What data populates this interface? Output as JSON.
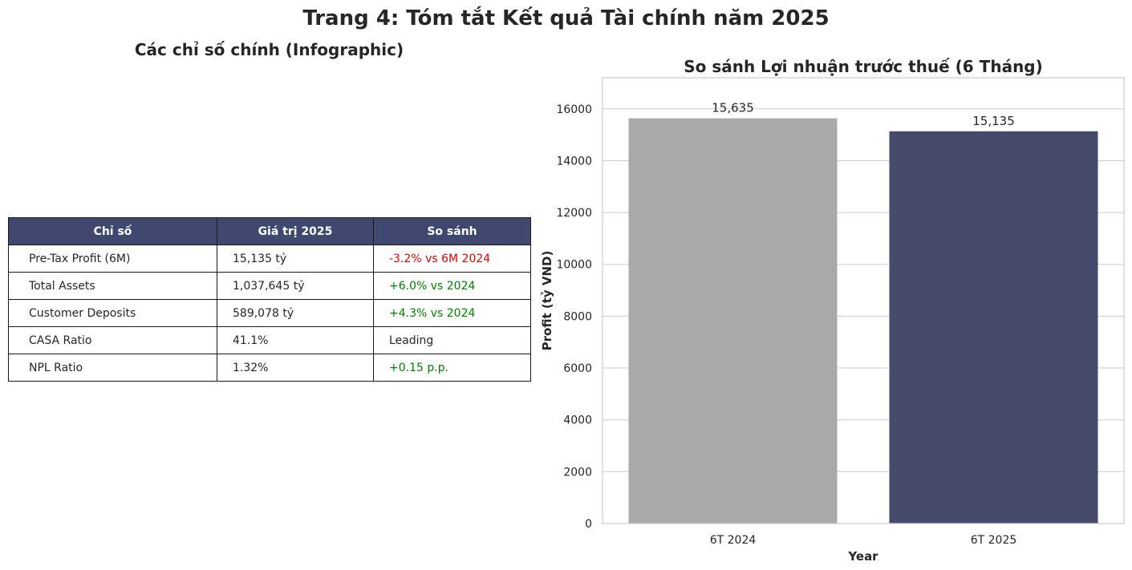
{
  "page": {
    "suptitle": "Trang 4: Tóm tắt Kết quả Tài chính năm 2025",
    "left_title": "Các chỉ số chính (Infographic)"
  },
  "table": {
    "headers": [
      "Chỉ số",
      "Giá trị 2025",
      "So sánh"
    ],
    "rows": [
      {
        "metric": "Pre-Tax Profit (6M)",
        "value": "15,135 tỷ",
        "comparison": "-3.2% vs 6M 2024",
        "comparison_color": "#e00000"
      },
      {
        "metric": "Total Assets",
        "value": "1,037,645 tỷ",
        "comparison": "+6.0% vs 2024",
        "comparison_color": "#008000"
      },
      {
        "metric": "Customer Deposits",
        "value": "589,078 tỷ",
        "comparison": "+4.3% vs 2024",
        "comparison_color": "#008000"
      },
      {
        "metric": "CASA Ratio",
        "value": "41.1%",
        "comparison": "Leading",
        "comparison_color": "#262626"
      },
      {
        "metric": "NPL Ratio",
        "value": "1.32%",
        "comparison": "+0.15 p.p.",
        "comparison_color": "#008000"
      }
    ],
    "header_color": "#414870"
  },
  "chart_data": {
    "type": "bar",
    "title": "So sánh Lợi nhuận trước thuế (6 Tháng)",
    "categories": [
      "6T 2024",
      "6T 2025"
    ],
    "values": [
      15635,
      15135
    ],
    "value_labels": [
      "15,635",
      "15,135"
    ],
    "colors": [
      "#a9a9a9",
      "#464a6b"
    ],
    "xlabel": "Year",
    "ylabel": "Profit (tỷ VND)",
    "ylim": [
      0,
      17200
    ],
    "yticks": [
      0,
      2000,
      4000,
      6000,
      8000,
      10000,
      12000,
      14000,
      16000
    ],
    "grid": true
  }
}
